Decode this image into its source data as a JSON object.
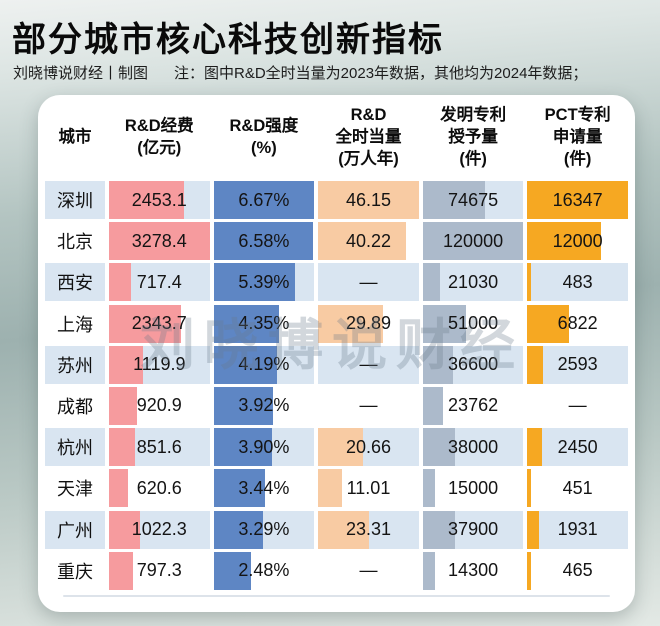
{
  "title": "部分城市核心科技创新指标",
  "credit": "刘晓博说财经丨制图",
  "note": "注：图中R&D全时当量为2023年数据，其他均为2024年数据；",
  "watermark": "刘晓博说财经",
  "colors": {
    "row_alt_bg": "#D9E5F1",
    "rd_expense_bar": "#F69B9E",
    "rd_intensity_bar": "#5E86C4",
    "rd_fte_bar": "#F8CBA3",
    "patent_bar": "#ACBACB",
    "pct_bar": "#F6A822",
    "divider": "#DDE3EA"
  },
  "chart_data": {
    "type": "table",
    "title": "部分城市核心科技创新指标",
    "legend_position": "none",
    "columns": [
      {
        "key": "city",
        "label": [
          "城市"
        ],
        "color": null,
        "max": null
      },
      {
        "key": "rd_expense",
        "label": [
          "R&D经费",
          "(亿元)"
        ],
        "color": "#F69B9E",
        "max": 3278.4
      },
      {
        "key": "rd_intensity",
        "label": [
          "R&D强度",
          "(%)"
        ],
        "color": "#5E86C4",
        "max": 6.67
      },
      {
        "key": "rd_fte",
        "label": [
          "R&D",
          "全时当量",
          "(万人年)"
        ],
        "color": "#F8CBA3",
        "max": 46.15
      },
      {
        "key": "patents_granted",
        "label": [
          "发明专利",
          "授予量",
          "(件)"
        ],
        "color": "#ACBACB",
        "max": 120000
      },
      {
        "key": "pct_applications",
        "label": [
          "PCT专利",
          "申请量",
          "(件)"
        ],
        "color": "#F6A822",
        "max": 16347
      }
    ],
    "rows": [
      {
        "city": "深圳",
        "cells": [
          {
            "text": "2453.1",
            "num": 2453.1
          },
          {
            "text": "6.67%",
            "num": 6.67
          },
          {
            "text": "46.15",
            "num": 46.15
          },
          {
            "text": "74675",
            "num": 74675
          },
          {
            "text": "16347",
            "num": 16347
          }
        ]
      },
      {
        "city": "北京",
        "cells": [
          {
            "text": "3278.4",
            "num": 3278.4
          },
          {
            "text": "6.58%",
            "num": 6.58
          },
          {
            "text": "40.22",
            "num": 40.22
          },
          {
            "text": "120000",
            "num": 120000
          },
          {
            "text": "12000",
            "num": 12000
          }
        ]
      },
      {
        "city": "西安",
        "cells": [
          {
            "text": "717.4",
            "num": 717.4
          },
          {
            "text": "5.39%",
            "num": 5.39
          },
          {
            "text": "—",
            "num": null
          },
          {
            "text": "21030",
            "num": 21030
          },
          {
            "text": "483",
            "num": 483
          }
        ]
      },
      {
        "city": "上海",
        "cells": [
          {
            "text": "2343.7",
            "num": 2343.7
          },
          {
            "text": "4.35%",
            "num": 4.35
          },
          {
            "text": "29.89",
            "num": 29.89
          },
          {
            "text": "51000",
            "num": 51000
          },
          {
            "text": "6822",
            "num": 6822
          }
        ]
      },
      {
        "city": "苏州",
        "cells": [
          {
            "text": "1119.9",
            "num": 1119.9
          },
          {
            "text": "4.19%",
            "num": 4.19
          },
          {
            "text": "—",
            "num": null
          },
          {
            "text": "36600",
            "num": 36600
          },
          {
            "text": "2593",
            "num": 2593
          }
        ]
      },
      {
        "city": "成都",
        "cells": [
          {
            "text": "920.9",
            "num": 920.9
          },
          {
            "text": "3.92%",
            "num": 3.92
          },
          {
            "text": "—",
            "num": null
          },
          {
            "text": "23762",
            "num": 23762
          },
          {
            "text": "—",
            "num": null
          }
        ]
      },
      {
        "city": "杭州",
        "cells": [
          {
            "text": "851.6",
            "num": 851.6
          },
          {
            "text": "3.90%",
            "num": 3.9
          },
          {
            "text": "20.66",
            "num": 20.66
          },
          {
            "text": "38000",
            "num": 38000
          },
          {
            "text": "2450",
            "num": 2450
          }
        ]
      },
      {
        "city": "天津",
        "cells": [
          {
            "text": "620.6",
            "num": 620.6
          },
          {
            "text": "3.44%",
            "num": 3.44
          },
          {
            "text": "11.01",
            "num": 11.01
          },
          {
            "text": "15000",
            "num": 15000
          },
          {
            "text": "451",
            "num": 451
          }
        ]
      },
      {
        "city": "广州",
        "cells": [
          {
            "text": "1022.3",
            "num": 1022.3
          },
          {
            "text": "3.29%",
            "num": 3.29
          },
          {
            "text": "23.31",
            "num": 23.31
          },
          {
            "text": "37900",
            "num": 37900
          },
          {
            "text": "1931",
            "num": 1931
          }
        ]
      },
      {
        "city": "重庆",
        "cells": [
          {
            "text": "797.3",
            "num": 797.3
          },
          {
            "text": "2.48%",
            "num": 2.48
          },
          {
            "text": "—",
            "num": null
          },
          {
            "text": "14300",
            "num": 14300
          },
          {
            "text": "465",
            "num": 465
          }
        ]
      }
    ]
  }
}
